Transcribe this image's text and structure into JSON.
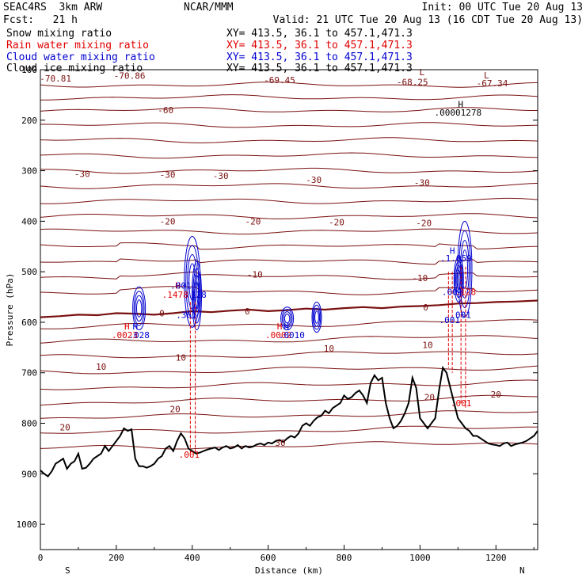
{
  "header": {
    "left_line1": "SEAC4RS  3km ARW",
    "left_line2": "Fcst:   21 h",
    "center_line1": "NCAR/MMM",
    "right_line1": "Init: 00 UTC Tue 20 Aug 13",
    "right_line2": "Valid: 21 UTC Tue 20 Aug 13 (16 CDT Tue 20 Aug 13)"
  },
  "legend": [
    {
      "name": "Snow mixing ratio",
      "xy": "XY= 413.5, 36.1 to 457.1,471.3",
      "color": "#000000"
    },
    {
      "name": "Rain water mixing ratio",
      "xy": "XY= 413.5, 36.1 to 457.1,471.3",
      "color": "#e00000"
    },
    {
      "name": "Cloud water mixing ratio",
      "xy": "XY= 413.5, 36.1 to 457.1,471.3",
      "color": "#0000d0"
    },
    {
      "name": "Cloud ice mixing ratio",
      "xy": "XY= 413.5, 36.1 to 457.1,471.3",
      "color": "#000000"
    }
  ],
  "chart_data": {
    "type": "line",
    "xlabel": "Distance (km)",
    "ylabel": "Pressure (hPa)",
    "xlim": [
      0,
      1310
    ],
    "ylim": [
      1050,
      100
    ],
    "x_ticks": [
      0,
      200,
      400,
      600,
      800,
      1000,
      1200
    ],
    "y_ticks": [
      200,
      300,
      400,
      500,
      600,
      700,
      800,
      900,
      1000
    ],
    "y_tick_label_100": "100",
    "x_end_labels": {
      "left": "S",
      "right": "N"
    },
    "temperature_contour_labels": [
      {
        "text": "-70.81",
        "x": 40,
        "p": 117
      },
      {
        "text": "-70.86",
        "x": 235,
        "p": 112
      },
      {
        "text": "-69.45",
        "x": 630,
        "p": 120
      },
      {
        "text": "-68.25",
        "x": 980,
        "p": 124
      },
      {
        "text": "L",
        "x": 1005,
        "p": 105
      },
      {
        "text": "L",
        "x": 1175,
        "p": 111
      },
      {
        "text": "-67.34",
        "x": 1190,
        "p": 127
      },
      {
        "text": "-60",
        "x": 330,
        "p": 180
      },
      {
        "text": "-30",
        "x": 110,
        "p": 306
      },
      {
        "text": "-30",
        "x": 335,
        "p": 308
      },
      {
        "text": "-30",
        "x": 475,
        "p": 310
      },
      {
        "text": "-30",
        "x": 720,
        "p": 318
      },
      {
        "text": "-30",
        "x": 1005,
        "p": 323
      },
      {
        "text": "-20",
        "x": 335,
        "p": 400
      },
      {
        "text": "-20",
        "x": 560,
        "p": 400
      },
      {
        "text": "-20",
        "x": 780,
        "p": 402
      },
      {
        "text": "-20",
        "x": 1010,
        "p": 403
      },
      {
        "text": "-10",
        "x": 565,
        "p": 505
      },
      {
        "text": "-10",
        "x": 1000,
        "p": 512
      },
      {
        "text": "0",
        "x": 320,
        "p": 582
      },
      {
        "text": "0",
        "x": 545,
        "p": 578
      },
      {
        "text": "0",
        "x": 1015,
        "p": 570
      },
      {
        "text": "10",
        "x": 760,
        "p": 652
      },
      {
        "text": "10",
        "x": 1020,
        "p": 645
      },
      {
        "text": "10",
        "x": 370,
        "p": 670
      },
      {
        "text": "10",
        "x": 160,
        "p": 688
      },
      {
        "text": "20",
        "x": 1025,
        "p": 748
      },
      {
        "text": "20",
        "x": 1200,
        "p": 743
      },
      {
        "text": "20",
        "x": 355,
        "p": 772
      },
      {
        "text": "20",
        "x": 65,
        "p": 808
      },
      {
        "text": "30",
        "x": 632,
        "p": 838
      }
    ],
    "hydrometeor_labels": [
      {
        "text": "H",
        "x": 1085,
        "p": 458,
        "color": "#0000d0"
      },
      {
        "text": ".1.059",
        "x": 1095,
        "p": 473,
        "color": "#0000d0"
      },
      {
        "text": "H",
        "x": 362,
        "p": 527,
        "color": "#e00000"
      },
      {
        "text": ".001",
        "x": 370,
        "p": 527,
        "color": "#0000d0"
      },
      {
        "text": ".1478",
        "x": 355,
        "p": 545,
        "color": "#e00000"
      },
      {
        "text": ".128",
        "x": 410,
        "p": 545,
        "color": "#0000d0"
      },
      {
        "text": ".001",
        "x": 1085,
        "p": 540,
        "color": "#0000d0"
      },
      {
        "text": ".128",
        "x": 1120,
        "p": 540,
        "color": "#e00000"
      },
      {
        "text": ".361",
        "x": 385,
        "p": 585,
        "color": "#0000d0"
      },
      {
        "text": "H",
        "x": 228,
        "p": 608,
        "color": "#e00000"
      },
      {
        "text": "H",
        "x": 250,
        "p": 608,
        "color": "#0000d0"
      },
      {
        "text": ".0023",
        "x": 222,
        "p": 625,
        "color": "#e00000"
      },
      {
        "text": ".028",
        "x": 260,
        "p": 625,
        "color": "#0000d0"
      },
      {
        "text": "H",
        "x": 630,
        "p": 608,
        "color": "#e00000"
      },
      {
        "text": "H",
        "x": 648,
        "p": 608,
        "color": "#0000d0"
      },
      {
        "text": ".0002",
        "x": 627,
        "p": 625,
        "color": "#e00000"
      },
      {
        "text": ".0010",
        "x": 662,
        "p": 625,
        "color": "#0000d0"
      },
      {
        "text": ".001",
        "x": 1078,
        "p": 595,
        "color": "#0000d0"
      },
      {
        "text": ".001",
        "x": 1107,
        "p": 585,
        "color": "#0000d0"
      },
      {
        "text": ".001",
        "x": 1108,
        "p": 760,
        "color": "#e00000"
      },
      {
        "text": ".001",
        "x": 392,
        "p": 862,
        "color": "#e00000"
      },
      {
        "text": "H",
        "x": 1107,
        "p": 168,
        "color": "#000000"
      },
      {
        "text": ".00001278",
        "x": 1100,
        "p": 185,
        "color": "#000000"
      }
    ],
    "terrain": {
      "x": [
        0,
        10,
        20,
        30,
        40,
        50,
        60,
        70,
        80,
        90,
        100,
        110,
        120,
        130,
        140,
        150,
        160,
        170,
        180,
        190,
        200,
        210,
        220,
        230,
        240,
        250,
        260,
        270,
        280,
        290,
        300,
        310,
        320,
        330,
        340,
        350,
        360,
        370,
        380,
        390,
        400,
        410,
        420,
        430,
        440,
        450,
        460,
        470,
        480,
        490,
        500,
        510,
        520,
        530,
        540,
        550,
        560,
        570,
        580,
        590,
        600,
        610,
        620,
        630,
        640,
        650,
        660,
        670,
        680,
        690,
        700,
        710,
        720,
        730,
        740,
        750,
        760,
        770,
        780,
        790,
        800,
        810,
        820,
        830,
        840,
        850,
        860,
        870,
        880,
        890,
        900,
        910,
        920,
        930,
        940,
        950,
        960,
        970,
        980,
        990,
        1000,
        1010,
        1020,
        1030,
        1040,
        1050,
        1060,
        1070,
        1080,
        1090,
        1100,
        1110,
        1120,
        1130,
        1140,
        1150,
        1160,
        1170,
        1180,
        1190,
        1200,
        1210,
        1220,
        1230,
        1240,
        1250,
        1260,
        1270,
        1280,
        1290,
        1300,
        1310
      ],
      "p": [
        893,
        900,
        905,
        895,
        880,
        875,
        870,
        890,
        880,
        875,
        860,
        890,
        888,
        880,
        870,
        865,
        860,
        845,
        855,
        845,
        835,
        825,
        810,
        815,
        812,
        870,
        885,
        885,
        888,
        885,
        880,
        870,
        865,
        850,
        845,
        855,
        835,
        820,
        830,
        850,
        855,
        860,
        858,
        855,
        852,
        850,
        848,
        853,
        848,
        845,
        850,
        848,
        843,
        850,
        845,
        848,
        846,
        842,
        840,
        843,
        838,
        840,
        835,
        833,
        837,
        830,
        825,
        828,
        820,
        805,
        800,
        805,
        795,
        788,
        785,
        775,
        780,
        770,
        765,
        760,
        745,
        752,
        748,
        740,
        735,
        745,
        760,
        720,
        705,
        715,
        710,
        760,
        790,
        810,
        805,
        795,
        780,
        760,
        710,
        730,
        790,
        800,
        810,
        800,
        790,
        735,
        690,
        700,
        730,
        760,
        790,
        800,
        810,
        815,
        825,
        825,
        830,
        835,
        840,
        842,
        843,
        845,
        840,
        838,
        845,
        842,
        840,
        838,
        835,
        830,
        825,
        815
      ]
    },
    "freezing_level": {
      "x": [
        0,
        50,
        100,
        150,
        200,
        250,
        300,
        350,
        400,
        450,
        500,
        550,
        600,
        650,
        700,
        750,
        800,
        850,
        900,
        950,
        1000,
        1050,
        1100,
        1150,
        1200,
        1250,
        1310
      ],
      "p": [
        590,
        588,
        585,
        586,
        582,
        583,
        585,
        582,
        578,
        580,
        577,
        575,
        578,
        576,
        573,
        575,
        572,
        570,
        572,
        569,
        568,
        566,
        563,
        562,
        560,
        559,
        557
      ]
    },
    "contour_levels": [
      130,
      155,
      180,
      210,
      240,
      270,
      300,
      330,
      360,
      390,
      420,
      450,
      480,
      510,
      540,
      610,
      640,
      670,
      700,
      730,
      760,
      790,
      820,
      850
    ]
  }
}
